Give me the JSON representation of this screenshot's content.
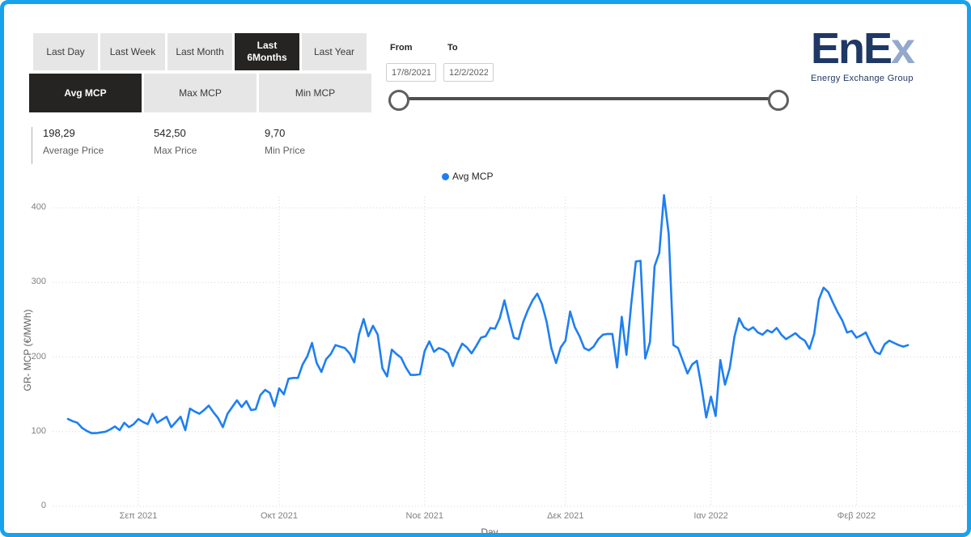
{
  "toolbar": {
    "range_buttons": [
      {
        "label": "Last Day",
        "selected": false
      },
      {
        "label": "Last Week",
        "selected": false
      },
      {
        "label": "Last Month",
        "selected": false
      },
      {
        "label": "Last 6Months",
        "selected": true
      },
      {
        "label": "Last Year",
        "selected": false
      }
    ],
    "metric_buttons": [
      {
        "label": "Avg MCP",
        "selected": true
      },
      {
        "label": "Max MCP",
        "selected": false
      },
      {
        "label": "Min MCP",
        "selected": false
      }
    ]
  },
  "stats": [
    {
      "value": "198,29",
      "label": "Average Price"
    },
    {
      "value": "542,50",
      "label": "Max Price"
    },
    {
      "value": "9,70",
      "label": "Min Price"
    }
  ],
  "date_filter": {
    "from_label": "From",
    "to_label": "To",
    "from_value": "17/8/2021",
    "to_value": "12/2/2022"
  },
  "logo": {
    "text_main": "EnE",
    "text_x": "x",
    "tagline": "Energy Exchange Group",
    "navy_color": "#1f3864"
  },
  "frame_border_color": "#17a2ef",
  "chart_data": {
    "type": "line",
    "title": "",
    "xlabel": "Day",
    "ylabel": "GR- MCP (€/MWh)",
    "x_start_date": "17/8/2021",
    "x_end_date": "12/2/2022",
    "ylim": [
      0,
      430
    ],
    "grid": true,
    "legend_position": "top-center",
    "y_ticks": [
      400,
      300,
      200,
      100,
      0
    ],
    "x_ticks": [
      {
        "label": "Σεπ 2021",
        "day": 15
      },
      {
        "label": "Οκτ 2021",
        "day": 45
      },
      {
        "label": "Νοε 2021",
        "day": 76
      },
      {
        "label": "Δεκ 2021",
        "day": 106
      },
      {
        "label": "Ιαν 2022",
        "day": 137
      },
      {
        "label": "Φεβ 2022",
        "day": 168
      }
    ],
    "series": [
      {
        "name": "Avg MCP",
        "color": "#1e7ff2",
        "unit": "€/MWh",
        "values": [
          117,
          114,
          112,
          105,
          101,
          98,
          98,
          99,
          100,
          103,
          107,
          102,
          112,
          106,
          110,
          117,
          113,
          110,
          124,
          112,
          116,
          120,
          106,
          113,
          120,
          102,
          131,
          127,
          124,
          129,
          135,
          126,
          118,
          106,
          124,
          133,
          142,
          133,
          141,
          129,
          130,
          149,
          156,
          152,
          134,
          158,
          150,
          171,
          172,
          172,
          190,
          201,
          219,
          192,
          180,
          197,
          204,
          216,
          214,
          212,
          205,
          193,
          230,
          251,
          228,
          242,
          230,
          185,
          174,
          210,
          204,
          199,
          186,
          176,
          176,
          177,
          208,
          221,
          207,
          212,
          210,
          205,
          188,
          205,
          218,
          213,
          205,
          215,
          226,
          228,
          239,
          238,
          252,
          276,
          250,
          226,
          224,
          247,
          263,
          276,
          285,
          271,
          247,
          212,
          192,
          213,
          222,
          261,
          240,
          228,
          212,
          209,
          214,
          224,
          230,
          231,
          231,
          186,
          254,
          203,
          270,
          328,
          329,
          198,
          220,
          322,
          340,
          417,
          365,
          216,
          212,
          195,
          178,
          190,
          195,
          160,
          119,
          147,
          121,
          196,
          163,
          185,
          227,
          252,
          240,
          236,
          240,
          233,
          230,
          236,
          233,
          239,
          230,
          224,
          228,
          232,
          226,
          222,
          211,
          231,
          277,
          293,
          287,
          273,
          260,
          249,
          233,
          235,
          226,
          229,
          233,
          219,
          207,
          204,
          217,
          222,
          219,
          216,
          214,
          216
        ]
      }
    ]
  }
}
